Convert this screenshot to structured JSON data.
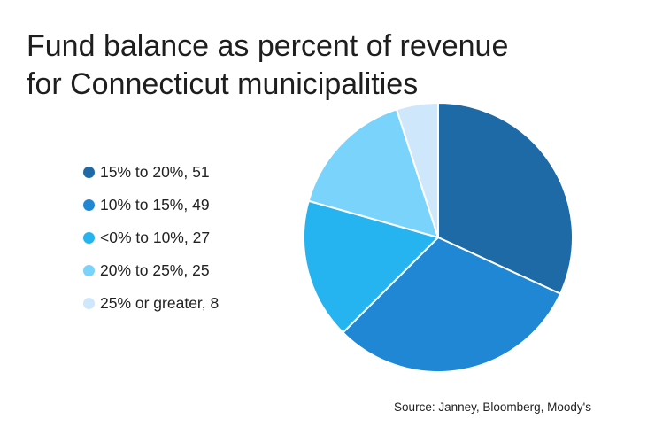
{
  "title": {
    "line1": "Fund balance as percent of revenue",
    "line2": "for Connecticut municipalities"
  },
  "source": "Source: Janney, Bloomberg, Moody's",
  "chart_data": {
    "type": "pie",
    "title": "Fund balance as percent of revenue for Connecticut municipalities",
    "legend_position": "left",
    "slices": [
      {
        "label": "15% to 20%, 51",
        "value": 51,
        "color": "#1e6aa6"
      },
      {
        "label": "10% to 15%, 49",
        "value": 49,
        "color": "#1f87d4"
      },
      {
        "label": "<0% to 10%, 27",
        "value": 27,
        "color": "#25b4f0"
      },
      {
        "label": "20% to 25%, 25",
        "value": 25,
        "color": "#79d3fb"
      },
      {
        "label": "25% or greater, 8",
        "value": 8,
        "color": "#cfe7fb"
      }
    ]
  }
}
